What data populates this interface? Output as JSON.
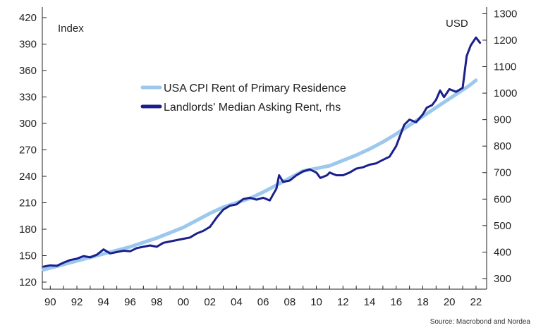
{
  "chart_data": {
    "type": "line",
    "left_axis": {
      "unit_label": "Index",
      "ylim": [
        112,
        432
      ],
      "ticks": [
        120,
        150,
        180,
        210,
        240,
        270,
        300,
        330,
        360,
        390,
        420
      ]
    },
    "right_axis": {
      "unit_label": "USD",
      "ylim": [
        260,
        1325
      ],
      "ticks": [
        300,
        400,
        500,
        600,
        700,
        800,
        900,
        1000,
        1100,
        1200,
        1300
      ]
    },
    "x_axis": {
      "xlim": [
        1989.4,
        2022.8
      ],
      "ticks": [
        1990,
        1992,
        1994,
        1996,
        1998,
        2000,
        2002,
        2004,
        2006,
        2008,
        2010,
        2012,
        2014,
        2016,
        2018,
        2020,
        2022
      ],
      "tick_labels": [
        "90",
        "92",
        "94",
        "96",
        "98",
        "00",
        "02",
        "04",
        "06",
        "08",
        "10",
        "12",
        "14",
        "16",
        "18",
        "20",
        "22"
      ]
    },
    "series": [
      {
        "name": "USA CPI Rent of Primary Residence",
        "axis": "left",
        "color": "#9cc8ee",
        "points": [
          [
            1989.5,
            134
          ],
          [
            1990,
            136
          ],
          [
            1991,
            140
          ],
          [
            1992,
            144
          ],
          [
            1993,
            148
          ],
          [
            1994,
            152
          ],
          [
            1995,
            156
          ],
          [
            1996,
            160
          ],
          [
            1997,
            165
          ],
          [
            1998,
            170
          ],
          [
            1999,
            176
          ],
          [
            2000,
            182
          ],
          [
            2001,
            190
          ],
          [
            2002,
            198
          ],
          [
            2003,
            205
          ],
          [
            2004,
            210
          ],
          [
            2005,
            215
          ],
          [
            2006,
            222
          ],
          [
            2007,
            230
          ],
          [
            2008,
            238
          ],
          [
            2009,
            246
          ],
          [
            2010,
            249
          ],
          [
            2011,
            252
          ],
          [
            2012,
            258
          ],
          [
            2013,
            264
          ],
          [
            2014,
            271
          ],
          [
            2015,
            279
          ],
          [
            2016,
            288
          ],
          [
            2017,
            298
          ],
          [
            2018,
            308
          ],
          [
            2019,
            318
          ],
          [
            2020,
            328
          ],
          [
            2021,
            338
          ],
          [
            2021.5,
            343
          ],
          [
            2022,
            349
          ]
        ]
      },
      {
        "name": "Landlords' Median Asking Rent, rhs",
        "axis": "right",
        "color": "#1a1f8c",
        "points": [
          [
            1989.5,
            345
          ],
          [
            1990,
            350
          ],
          [
            1990.5,
            348
          ],
          [
            1991,
            360
          ],
          [
            1991.5,
            370
          ],
          [
            1992,
            375
          ],
          [
            1992.5,
            385
          ],
          [
            1993,
            380
          ],
          [
            1993.5,
            390
          ],
          [
            1994,
            410
          ],
          [
            1994.5,
            395
          ],
          [
            1995,
            400
          ],
          [
            1995.5,
            405
          ],
          [
            1996,
            403
          ],
          [
            1996.5,
            415
          ],
          [
            1997,
            420
          ],
          [
            1997.5,
            425
          ],
          [
            1998,
            420
          ],
          [
            1998.5,
            435
          ],
          [
            1999,
            440
          ],
          [
            1999.5,
            445
          ],
          [
            2000,
            450
          ],
          [
            2000.5,
            455
          ],
          [
            2001,
            470
          ],
          [
            2001.5,
            480
          ],
          [
            2002,
            495
          ],
          [
            2002.5,
            530
          ],
          [
            2003,
            560
          ],
          [
            2003.5,
            575
          ],
          [
            2004,
            580
          ],
          [
            2004.5,
            600
          ],
          [
            2005,
            605
          ],
          [
            2005.5,
            598
          ],
          [
            2006,
            605
          ],
          [
            2006.5,
            595
          ],
          [
            2007,
            640
          ],
          [
            2007.2,
            690
          ],
          [
            2007.5,
            665
          ],
          [
            2008,
            670
          ],
          [
            2008.5,
            690
          ],
          [
            2009,
            705
          ],
          [
            2009.5,
            712
          ],
          [
            2010,
            700
          ],
          [
            2010.3,
            680
          ],
          [
            2010.8,
            690
          ],
          [
            2011,
            700
          ],
          [
            2011.5,
            690
          ],
          [
            2012,
            690
          ],
          [
            2012.5,
            700
          ],
          [
            2013,
            715
          ],
          [
            2013.5,
            720
          ],
          [
            2014,
            730
          ],
          [
            2014.5,
            735
          ],
          [
            2015,
            748
          ],
          [
            2015.5,
            760
          ],
          [
            2016,
            800
          ],
          [
            2016.3,
            840
          ],
          [
            2016.6,
            880
          ],
          [
            2017,
            900
          ],
          [
            2017.5,
            890
          ],
          [
            2018,
            920
          ],
          [
            2018.3,
            945
          ],
          [
            2018.7,
            955
          ],
          [
            2019,
            975
          ],
          [
            2019.3,
            1010
          ],
          [
            2019.6,
            985
          ],
          [
            2020,
            1015
          ],
          [
            2020.5,
            1005
          ],
          [
            2021,
            1020
          ],
          [
            2021.3,
            1140
          ],
          [
            2021.6,
            1180
          ],
          [
            2022,
            1210
          ],
          [
            2022.3,
            1190
          ]
        ]
      }
    ],
    "legend": {
      "placement": "center"
    }
  },
  "source": "Source: Macrobond and Nordea"
}
